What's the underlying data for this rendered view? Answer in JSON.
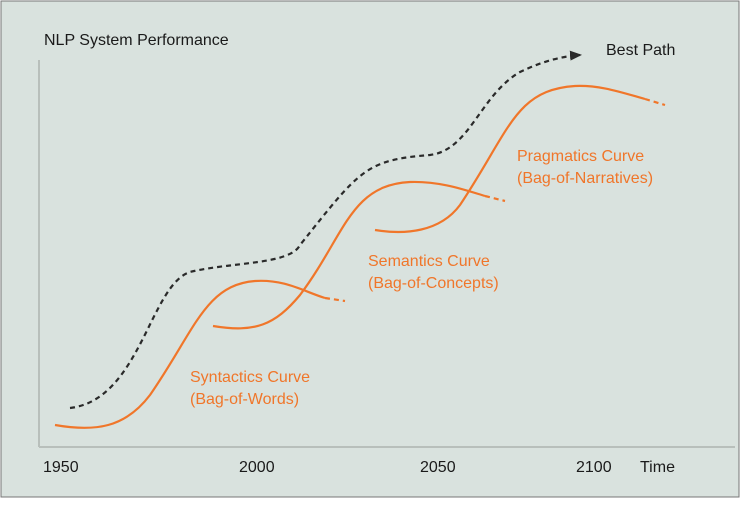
{
  "title": "NLP System Performance",
  "x_axis_label": "Time",
  "x_ticks": [
    "1950",
    "2000",
    "2050",
    "2100"
  ],
  "best_path_label": "Best Path",
  "curves": [
    {
      "name": "Syntactics Curve",
      "subtitle": "(Bag-of-Words)"
    },
    {
      "name": "Semantics Curve",
      "subtitle": "(Bag-of-Concepts)"
    },
    {
      "name": "Pragmatics Curve",
      "subtitle": "(Bag-of-Narratives)"
    }
  ],
  "colors": {
    "background": "#d9e2de",
    "curve": "#f0762a",
    "best_path": "#2a2a2a",
    "axis": "#b8bfbb",
    "border": "#777777"
  }
}
